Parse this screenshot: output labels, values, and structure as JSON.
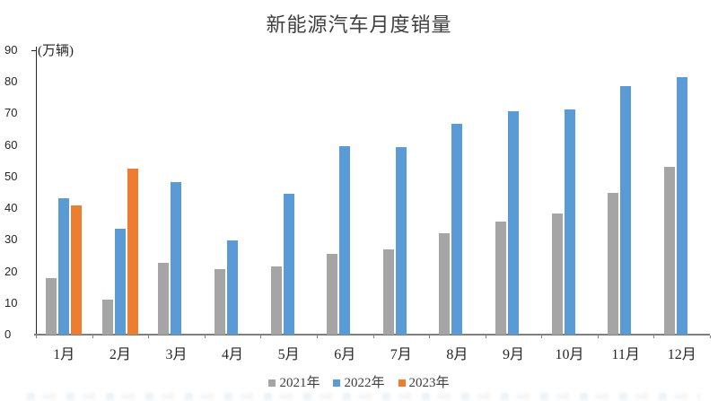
{
  "chart_data": {
    "type": "bar",
    "title": "新能源汽车月度销量",
    "unit_label": "(万辆)",
    "xlabel": "",
    "ylabel": "万辆",
    "categories": [
      "1月",
      "2月",
      "3月",
      "4月",
      "5月",
      "6月",
      "7月",
      "8月",
      "9月",
      "10月",
      "11月",
      "12月"
    ],
    "series": [
      {
        "name": "2021年",
        "color": "#A5A5A5",
        "values": [
          17.9,
          11.0,
          22.6,
          20.6,
          21.7,
          25.6,
          27.1,
          32.1,
          35.7,
          38.3,
          45.0,
          53.1
        ]
      },
      {
        "name": "2022年",
        "color": "#5B9BD5",
        "values": [
          43.1,
          33.4,
          48.4,
          29.9,
          44.7,
          59.6,
          59.3,
          66.6,
          70.8,
          71.4,
          78.6,
          81.4
        ]
      },
      {
        "name": "2023年",
        "color": "#ED7D31",
        "values": [
          40.8,
          52.5,
          null,
          null,
          null,
          null,
          null,
          null,
          null,
          null,
          null,
          null
        ]
      }
    ],
    "ylim": [
      0,
      90
    ],
    "y_tick_step": 10,
    "y_tick_labels": [
      "0",
      "10",
      "20",
      "30",
      "40",
      "50",
      "60",
      "70",
      "80",
      "90"
    ],
    "grid": "off",
    "legend_position": "bottom",
    "axis_colors": {
      "y_axis": "#262626",
      "x_axis": "#7f7f7f",
      "tick_text": "#262626",
      "title_text": "#3f3f3f"
    }
  }
}
